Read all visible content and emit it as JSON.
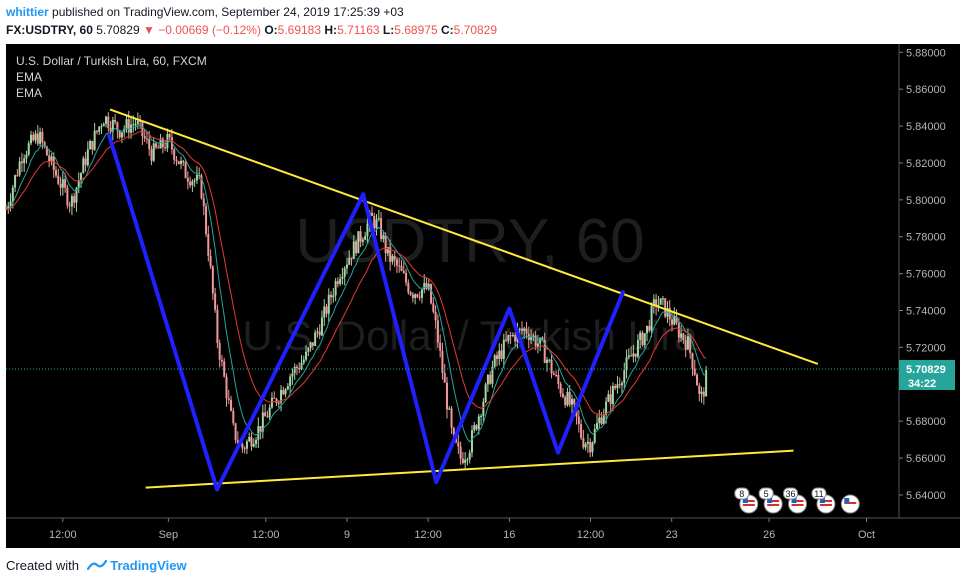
{
  "header": {
    "user": "whittier",
    "published_text": "published on TradingView.com, September 24, 2019 17:25:39 +03",
    "symbol": "FX:USDTRY, 60",
    "last": "5.70829",
    "change": "−0.00669 (−0.12%)",
    "open_label": "O:",
    "open": "5.69183",
    "high_label": "H:",
    "high": "5.71163",
    "low_label": "L:",
    "low": "5.68975",
    "close_label": "C:",
    "close": "5.70829"
  },
  "legend": {
    "title": "U.S. Dollar / Turkish Lira, 60, FXCM",
    "ind1": "EMA",
    "ind2": "EMA"
  },
  "watermark": {
    "symbol": "USDTRY, 60",
    "desc": "U.S. Dollar / Turkish Lira"
  },
  "price_badge": {
    "price": "5.70829",
    "countdown": "34:22"
  },
  "event_badges": [
    "8",
    "5",
    "36",
    "11"
  ],
  "footer": {
    "made_with": "Created with",
    "brand": "TradingView"
  },
  "colors": {
    "background": "#000000",
    "trendline": "#ffeb3b",
    "pattern": "#2020ff",
    "ema_fast": "#26a69a",
    "ema_slow": "#e53935",
    "price_line": "#26a69a"
  },
  "chart_data": {
    "type": "candlestick",
    "instrument": "USDTRY",
    "timeframe": "60",
    "y_ticks": [
      "5.88000",
      "5.86000",
      "5.84000",
      "5.82000",
      "5.80000",
      "5.78000",
      "5.76000",
      "5.74000",
      "5.72000",
      "5.70000",
      "5.68000",
      "5.66000",
      "5.64000"
    ],
    "y_tick_values": [
      5.88,
      5.86,
      5.84,
      5.82,
      5.8,
      5.78,
      5.76,
      5.74,
      5.72,
      5.7,
      5.68,
      5.66,
      5.64
    ],
    "ylim": [
      5.6275,
      5.8845
    ],
    "x_ticks": [
      {
        "t": 0.7,
        "label": "12:00"
      },
      {
        "t": 2.0,
        "label": "Sep"
      },
      {
        "t": 3.2,
        "label": "12:00"
      },
      {
        "t": 4.2,
        "label": "9"
      },
      {
        "t": 5.2,
        "label": "12:00"
      },
      {
        "t": 6.2,
        "label": "16"
      },
      {
        "t": 7.2,
        "label": "12:00"
      },
      {
        "t": 8.2,
        "label": "23"
      },
      {
        "t": 9.4,
        "label": "26"
      },
      {
        "t": 10.6,
        "label": "Oct"
      }
    ],
    "xlim": [
      0,
      11.0
    ],
    "price_path": [
      [
        0.0,
        5.795
      ],
      [
        0.2,
        5.825
      ],
      [
        0.4,
        5.835
      ],
      [
        0.6,
        5.815
      ],
      [
        0.8,
        5.798
      ],
      [
        1.0,
        5.825
      ],
      [
        1.2,
        5.845
      ],
      [
        1.4,
        5.838
      ],
      [
        1.6,
        5.842
      ],
      [
        1.8,
        5.825
      ],
      [
        2.0,
        5.832
      ],
      [
        2.2,
        5.815
      ],
      [
        2.4,
        5.808
      ],
      [
        2.5,
        5.77
      ],
      [
        2.6,
        5.725
      ],
      [
        2.7,
        5.7
      ],
      [
        2.8,
        5.675
      ],
      [
        2.9,
        5.665
      ],
      [
        3.0,
        5.67
      ],
      [
        3.1,
        5.675
      ],
      [
        3.3,
        5.69
      ],
      [
        3.5,
        5.705
      ],
      [
        3.7,
        5.715
      ],
      [
        3.9,
        5.735
      ],
      [
        4.1,
        5.76
      ],
      [
        4.3,
        5.775
      ],
      [
        4.5,
        5.79
      ],
      [
        4.6,
        5.785
      ],
      [
        4.7,
        5.77
      ],
      [
        4.8,
        5.765
      ],
      [
        5.0,
        5.75
      ],
      [
        5.2,
        5.752
      ],
      [
        5.3,
        5.73
      ],
      [
        5.4,
        5.7
      ],
      [
        5.5,
        5.67
      ],
      [
        5.6,
        5.66
      ],
      [
        5.7,
        5.665
      ],
      [
        5.8,
        5.68
      ],
      [
        6.0,
        5.71
      ],
      [
        6.2,
        5.725
      ],
      [
        6.4,
        5.73
      ],
      [
        6.6,
        5.72
      ],
      [
        6.8,
        5.7
      ],
      [
        7.0,
        5.685
      ],
      [
        7.1,
        5.67
      ],
      [
        7.2,
        5.668
      ],
      [
        7.3,
        5.68
      ],
      [
        7.5,
        5.698
      ],
      [
        7.7,
        5.715
      ],
      [
        7.9,
        5.73
      ],
      [
        8.0,
        5.745
      ],
      [
        8.1,
        5.742
      ],
      [
        8.2,
        5.735
      ],
      [
        8.3,
        5.728
      ],
      [
        8.4,
        5.722
      ],
      [
        8.5,
        5.705
      ],
      [
        8.55,
        5.69
      ],
      [
        8.6,
        5.698
      ],
      [
        8.65,
        5.708
      ]
    ],
    "trendlines": [
      {
        "name": "upper",
        "points": [
          [
            1.28,
            5.849
          ],
          [
            10.0,
            5.711
          ]
        ]
      },
      {
        "name": "lower",
        "points": [
          [
            1.72,
            5.644
          ],
          [
            9.7,
            5.664
          ]
        ]
      }
    ],
    "pattern": [
      [
        1.27,
        5.835
      ],
      [
        2.6,
        5.643
      ],
      [
        4.4,
        5.803
      ],
      [
        5.3,
        5.647
      ],
      [
        6.2,
        5.741
      ],
      [
        6.8,
        5.663
      ],
      [
        7.6,
        5.75
      ]
    ],
    "last_price": 5.70829
  }
}
